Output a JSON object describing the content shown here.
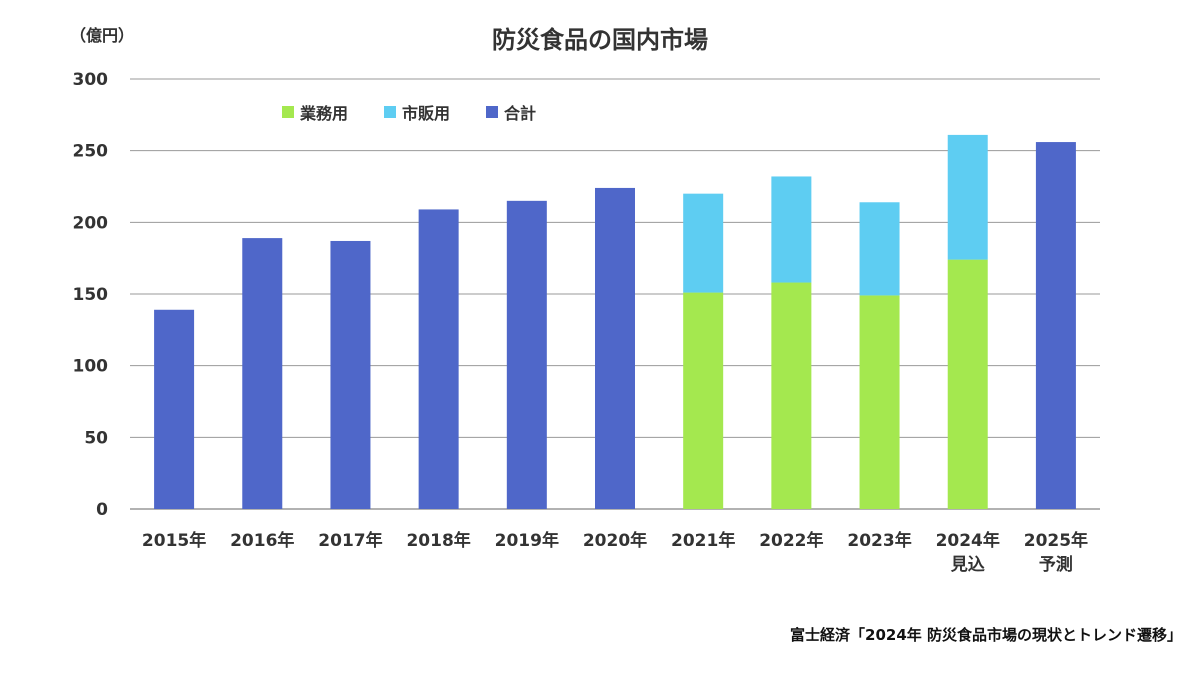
{
  "title": "防災食品の国内市場",
  "unit_label": "（億円）",
  "source": "富士経済「2024年 防災食品市場の現状とトレンド遷移」",
  "chart_data": {
    "type": "bar",
    "stacked": true,
    "categories": [
      "2015年",
      "2016年",
      "2017年",
      "2018年",
      "2019年",
      "2020年",
      "2021年",
      "2022年",
      "2023年",
      "2024年\n見込",
      "2025年\n予測"
    ],
    "series": [
      {
        "name": "業務用",
        "color": "#a4e84f",
        "values": [
          null,
          null,
          null,
          null,
          null,
          null,
          151,
          158,
          149,
          174,
          null
        ]
      },
      {
        "name": "市販用",
        "color": "#5ecdf2",
        "values": [
          null,
          null,
          null,
          null,
          null,
          null,
          69,
          74,
          65,
          87,
          null
        ]
      },
      {
        "name": "合計",
        "color": "#4f67c9",
        "values": [
          139,
          189,
          187,
          209,
          215,
          224,
          null,
          null,
          null,
          null,
          256
        ]
      }
    ],
    "yticks": [
      0,
      50,
      100,
      150,
      200,
      250,
      300
    ],
    "ylim": [
      0,
      300
    ],
    "grid": true,
    "legend_position": "top-left"
  }
}
